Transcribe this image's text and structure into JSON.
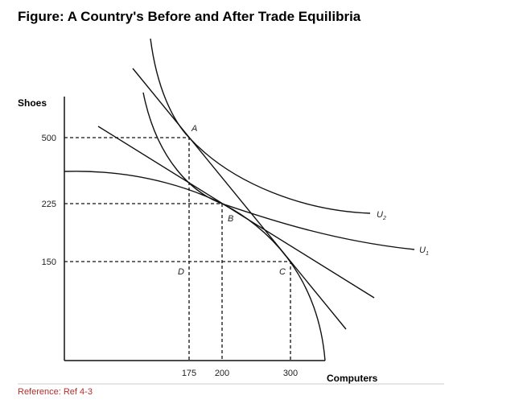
{
  "title": "Figure: A Country's Before and After Trade Equilibria",
  "axes": {
    "y_label": "Shoes",
    "x_label": "Computers",
    "y_ticks": [
      500,
      225,
      150
    ],
    "x_ticks": [
      175,
      200,
      300
    ]
  },
  "points": [
    "A",
    "B",
    "C",
    "D"
  ],
  "curves": [
    {
      "label": "U",
      "subscript": "2"
    },
    {
      "label": "U",
      "subscript": "1"
    }
  ],
  "reference": "Reference: Ref 4-3"
}
